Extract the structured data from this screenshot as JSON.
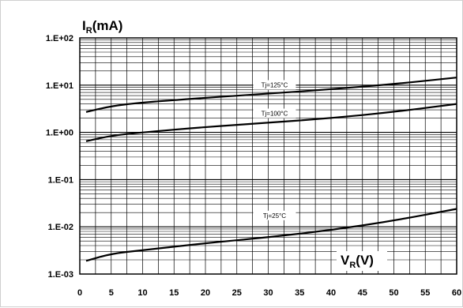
{
  "chart_data": {
    "type": "line",
    "title": "",
    "ylabel": {
      "main": "I",
      "sub": "R",
      "unit": "(mA)"
    },
    "xlabel": {
      "main": "V",
      "sub": "R",
      "unit": "(V)"
    },
    "xlim": [
      0,
      60
    ],
    "ylim": [
      0.001,
      100
    ],
    "yscale": "log",
    "grid": true,
    "x_ticks": [
      "0",
      "5",
      "10",
      "15",
      "20",
      "25",
      "30",
      "35",
      "40",
      "45",
      "50",
      "55",
      "60"
    ],
    "y_ticks": [
      "1.E+02",
      "1.E+01",
      "1.E+00",
      "1.E-01",
      "1.E-02",
      "1.E-03"
    ],
    "series": [
      {
        "name": "Tj=125°C",
        "x": [
          1,
          5,
          10,
          20,
          30,
          40,
          50,
          60
        ],
        "y": [
          2.7,
          3.6,
          4.3,
          5.4,
          6.6,
          8.2,
          10.5,
          14.5
        ]
      },
      {
        "name": "Tj=100°C",
        "x": [
          1,
          5,
          10,
          20,
          30,
          40,
          50,
          60
        ],
        "y": [
          0.65,
          0.85,
          1.0,
          1.3,
          1.6,
          2.0,
          2.7,
          4.0
        ]
      },
      {
        "name": "Tj=25°C",
        "x": [
          1,
          5,
          10,
          20,
          30,
          40,
          50,
          60
        ],
        "y": [
          0.0019,
          0.0027,
          0.0032,
          0.0045,
          0.006,
          0.0085,
          0.0135,
          0.024
        ]
      }
    ]
  }
}
